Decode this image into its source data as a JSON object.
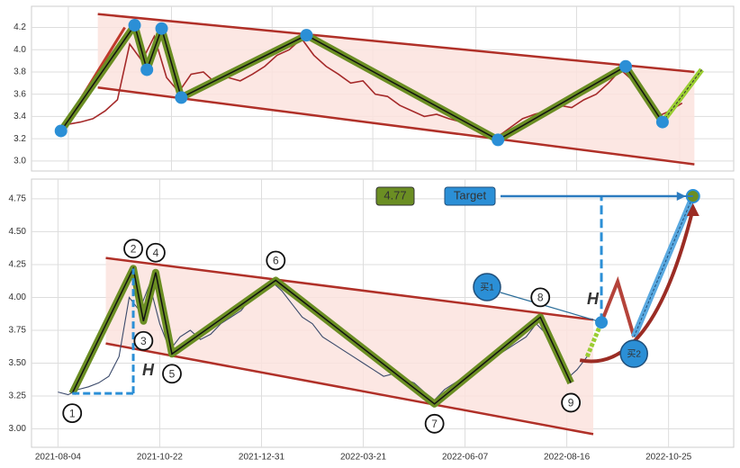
{
  "chart_data": [
    {
      "type": "line",
      "xlim": [
        -5,
        281
      ],
      "ylim": [
        2.91,
        4.39
      ],
      "xticks": [
        10,
        52,
        93,
        134,
        176,
        217,
        259
      ],
      "yticks": [
        {
          "value": 3.0,
          "label": "3.0"
        },
        {
          "value": 3.2,
          "label": "3.2"
        },
        {
          "value": 3.4,
          "label": "3.4"
        },
        {
          "value": 3.6,
          "label": "3.6"
        },
        {
          "value": 3.8,
          "label": "3.8"
        },
        {
          "value": 4.0,
          "label": "4.0"
        },
        {
          "value": 4.2,
          "label": "4.2"
        }
      ],
      "grid": true,
      "series": [
        {
          "color": "#a52a2a",
          "x": [
            10,
            15,
            20,
            25,
            30,
            35,
            40,
            45,
            50,
            55,
            60,
            65,
            70,
            75,
            80,
            85,
            90,
            95,
            100,
            105,
            110,
            115,
            120,
            125,
            130,
            135,
            140,
            145,
            150,
            155,
            160,
            165,
            170,
            175,
            180,
            185,
            190,
            195,
            200,
            205,
            210,
            215,
            220,
            225,
            230,
            235,
            240,
            245,
            250,
            255,
            260
          ],
          "values": [
            3.33,
            3.35,
            3.38,
            3.45,
            3.55,
            4.05,
            3.9,
            4.12,
            3.75,
            3.62,
            3.78,
            3.8,
            3.7,
            3.75,
            3.72,
            3.78,
            3.85,
            3.95,
            4.0,
            4.1,
            3.95,
            3.85,
            3.78,
            3.7,
            3.72,
            3.6,
            3.58,
            3.5,
            3.45,
            3.4,
            3.42,
            3.38,
            3.35,
            3.3,
            3.25,
            3.22,
            3.3,
            3.38,
            3.42,
            3.45,
            3.5,
            3.48,
            3.55,
            3.6,
            3.7,
            3.82,
            3.72,
            3.55,
            3.4,
            3.45,
            3.52
          ]
        }
      ],
      "zigzag": {
        "color": "#6b8e23",
        "x": [
          7,
          37,
          42,
          48,
          56,
          107,
          185,
          237,
          252
        ],
        "values": [
          3.27,
          4.22,
          3.82,
          4.19,
          3.57,
          4.13,
          3.19,
          3.85,
          3.35
        ]
      },
      "channel": {
        "color": "#b03028",
        "fill": "#fbe3de",
        "x": [
          22,
          265
        ],
        "upper": [
          4.32,
          3.8
        ],
        "lower": [
          3.66,
          2.97
        ]
      },
      "trend": {
        "color": "#c0392b",
        "x": [
          7,
          33
        ],
        "values": [
          3.27,
          4.2
        ]
      },
      "projection": {
        "color": "#9acd32",
        "x": [
          252,
          268
        ],
        "values": [
          3.35,
          3.82
        ]
      }
    },
    {
      "type": "line",
      "xlim": [
        -13,
        332
      ],
      "ylim": [
        2.86,
        4.9
      ],
      "xticks": [
        {
          "value": 0,
          "label": "2021-08-04"
        },
        {
          "value": 50,
          "label": "2021-10-22"
        },
        {
          "value": 100,
          "label": "2021-12-31"
        },
        {
          "value": 150,
          "label": "2022-03-21"
        },
        {
          "value": 200,
          "label": "2022-06-07"
        },
        {
          "value": 250,
          "label": "2022-08-16"
        },
        {
          "value": 300,
          "label": "2022-10-25"
        }
      ],
      "yticks": [
        {
          "value": 3.0,
          "label": "3.00"
        },
        {
          "value": 3.25,
          "label": "3.25"
        },
        {
          "value": 3.5,
          "label": "3.50"
        },
        {
          "value": 3.75,
          "label": "3.75"
        },
        {
          "value": 4.0,
          "label": "4.00"
        },
        {
          "value": 4.25,
          "label": "4.25"
        },
        {
          "value": 4.5,
          "label": "4.50"
        },
        {
          "value": 4.75,
          "label": "4.75"
        }
      ],
      "grid": true,
      "series": [
        {
          "color": "#3b4a6b",
          "x": [
            0,
            5,
            10,
            15,
            20,
            25,
            30,
            35,
            40,
            45,
            50,
            55,
            60,
            65,
            70,
            75,
            80,
            85,
            90,
            95,
            100,
            105,
            110,
            115,
            120,
            125,
            130,
            135,
            140,
            145,
            150,
            155,
            160,
            165,
            170,
            175,
            180,
            185,
            190,
            195,
            200,
            205,
            210,
            215,
            220,
            225,
            230,
            235,
            240,
            245,
            250,
            255,
            260
          ],
          "values": [
            3.28,
            3.26,
            3.3,
            3.32,
            3.35,
            3.4,
            3.55,
            4.0,
            3.9,
            4.1,
            3.8,
            3.6,
            3.7,
            3.75,
            3.68,
            3.72,
            3.8,
            3.85,
            3.9,
            4.0,
            4.05,
            4.12,
            4.05,
            3.95,
            3.85,
            3.8,
            3.7,
            3.65,
            3.6,
            3.55,
            3.5,
            3.45,
            3.4,
            3.42,
            3.38,
            3.35,
            3.28,
            3.22,
            3.3,
            3.35,
            3.4,
            3.45,
            3.5,
            3.55,
            3.6,
            3.65,
            3.7,
            3.8,
            3.72,
            3.55,
            3.38,
            3.45,
            3.55
          ]
        }
      ],
      "zigzag": {
        "color": "#6b8e23",
        "x": [
          7,
          37,
          42,
          48,
          56,
          107,
          185,
          237,
          252
        ],
        "values": [
          3.27,
          4.22,
          3.82,
          4.19,
          3.57,
          4.13,
          3.19,
          3.85,
          3.35
        ],
        "labels": [
          "1",
          "2",
          "3",
          "4",
          "5",
          "6",
          "7",
          "8",
          "9"
        ]
      },
      "channel": {
        "color": "#b03028",
        "fill": "#fbe3de",
        "x": [
          23.5,
          263
        ],
        "upper": [
          4.3,
          3.83
        ],
        "lower": [
          3.65,
          2.96
        ]
      },
      "trend": {
        "color": "#d04020",
        "x": [
          7,
          37
        ],
        "values": [
          3.27,
          4.22
        ]
      },
      "projection": {
        "color": "#9b2c24",
        "x": [
          260,
          267,
          275,
          283,
          312
        ],
        "values": [
          3.55,
          3.81,
          4.12,
          3.7,
          4.77
        ]
      },
      "annotations": {
        "target": "Target",
        "buy1": "买1",
        "buy2": "买2",
        "h": "H"
      }
    }
  ]
}
